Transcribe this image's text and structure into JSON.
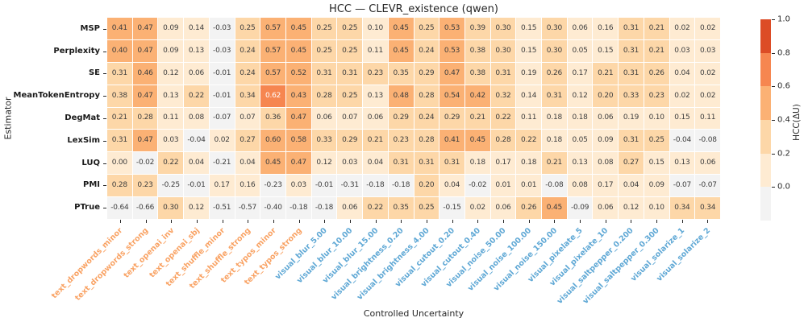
{
  "chart_data": {
    "type": "heatmap",
    "title": "HCC — CLEVR_existence (qwen)",
    "xlabel": "Controlled Uncertainty",
    "ylabel": "Estimator",
    "colorbar_label": "HCC(ΔU)",
    "colorbar_ticks": [
      1.0,
      0.8,
      0.6,
      0.4,
      0.2,
      0.0
    ],
    "colorbar_range": [
      -0.2,
      1.0
    ],
    "rows": [
      "MSP",
      "Perplexity",
      "SE",
      "MeanTokenEntropy",
      "DegMat",
      "LexSim",
      "LUQ",
      "PMI",
      "PTrue"
    ],
    "columns": [
      "text_dropwords_minor",
      "text_dropwords_strong",
      "text_openai_inv",
      "text_openai_sbj",
      "text_shuffle_minor",
      "text_shuffle_strong",
      "text_typos_minor",
      "text_typos_strong",
      "visual_blur_5.00",
      "visual_blur_10.00",
      "visual_blur_15.00",
      "visual_brightness_0.20",
      "visual_brightness_4.00",
      "visual_cutout_0.20",
      "visual_cutout_0.40",
      "visual_noise_50.00",
      "visual_noise_100.00",
      "visual_noise_150.00",
      "visual_pixelate_5",
      "visual_pixelate_10",
      "visual_saltpepper_0.200",
      "visual_saltpepper_0.300",
      "visual_solarize_1",
      "visual_solarize_2"
    ],
    "values": [
      [
        0.41,
        0.47,
        0.09,
        0.14,
        -0.03,
        0.25,
        0.57,
        0.45,
        0.25,
        0.25,
        0.1,
        0.45,
        0.25,
        0.53,
        0.39,
        0.3,
        0.15,
        0.3,
        0.06,
        0.16,
        0.31,
        0.21,
        0.02,
        0.02
      ],
      [
        0.4,
        0.47,
        0.09,
        0.13,
        -0.03,
        0.24,
        0.57,
        0.45,
        0.25,
        0.25,
        0.11,
        0.45,
        0.24,
        0.53,
        0.38,
        0.3,
        0.15,
        0.3,
        0.05,
        0.15,
        0.31,
        0.21,
        0.03,
        0.03
      ],
      [
        0.31,
        0.46,
        0.12,
        0.06,
        -0.01,
        0.24,
        0.57,
        0.52,
        0.31,
        0.31,
        0.23,
        0.35,
        0.29,
        0.47,
        0.38,
        0.31,
        0.19,
        0.26,
        0.17,
        0.21,
        0.31,
        0.26,
        0.04,
        0.02
      ],
      [
        0.38,
        0.47,
        0.13,
        0.22,
        -0.01,
        0.34,
        0.62,
        0.43,
        0.28,
        0.25,
        0.13,
        0.48,
        0.28,
        0.54,
        0.42,
        0.32,
        0.14,
        0.31,
        0.12,
        0.2,
        0.33,
        0.23,
        0.02,
        0.02
      ],
      [
        0.21,
        0.28,
        0.11,
        0.08,
        -0.07,
        0.07,
        0.36,
        0.47,
        0.06,
        0.07,
        0.06,
        0.29,
        0.24,
        0.29,
        0.21,
        0.22,
        0.11,
        0.18,
        0.18,
        0.06,
        0.19,
        0.1,
        0.15,
        0.11
      ],
      [
        0.31,
        0.47,
        0.03,
        -0.04,
        0.02,
        0.27,
        0.6,
        0.58,
        0.33,
        0.29,
        0.21,
        0.23,
        0.28,
        0.41,
        0.45,
        0.28,
        0.22,
        0.18,
        0.05,
        0.09,
        0.31,
        0.25,
        -0.04,
        -0.08
      ],
      [
        0.0,
        -0.02,
        0.22,
        0.04,
        -0.21,
        0.04,
        0.45,
        0.47,
        0.12,
        0.03,
        0.04,
        0.31,
        0.31,
        0.31,
        0.18,
        0.17,
        0.18,
        0.21,
        0.13,
        0.08,
        0.27,
        0.15,
        0.13,
        0.06
      ],
      [
        0.28,
        0.23,
        -0.25,
        -0.01,
        0.17,
        0.16,
        -0.23,
        0.03,
        -0.01,
        -0.31,
        -0.18,
        -0.18,
        0.2,
        0.04,
        -0.02,
        0.01,
        0.01,
        -0.08,
        0.08,
        0.17,
        0.04,
        0.09,
        -0.07,
        -0.07
      ],
      [
        -0.64,
        -0.66,
        0.3,
        0.12,
        -0.51,
        -0.57,
        -0.4,
        -0.18,
        -0.18,
        0.06,
        0.22,
        0.35,
        0.25,
        -0.15,
        0.02,
        0.06,
        0.26,
        0.45,
        -0.09,
        0.06,
        0.12,
        0.1,
        0.34,
        0.34
      ]
    ],
    "band_colors": [
      "#f3f3f3",
      "#feebd2",
      "#fdd7a8",
      "#fbb174",
      "#f68650",
      "#dc4c26"
    ],
    "cell_text_color": "#3d3d3d",
    "cell_text_color_dark_band": "#ffffff",
    "x_tick_colors": {
      "text": "#f9a263",
      "visual": "#5fa8d5"
    },
    "legend_position": "right",
    "grid": false
  }
}
